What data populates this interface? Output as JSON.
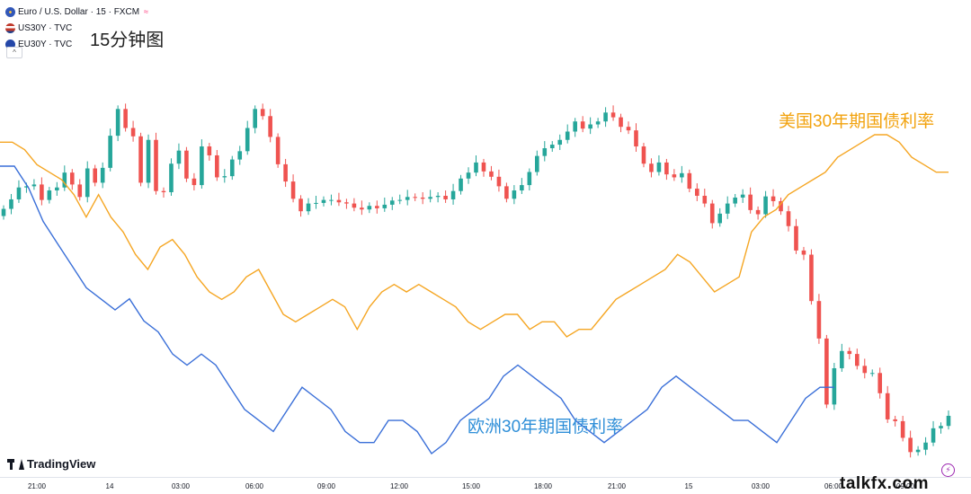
{
  "legend": {
    "main": "Euro / U.S. Dollar · 15 · FXCM",
    "highlight_glyph": "≈",
    "us_series": "US30Y · TVC",
    "eu_series": "EU30Y · TVC",
    "collapse_glyph": "^"
  },
  "annotations": {
    "timeframe": "15分钟图",
    "us_label": "美国30年期国债利率",
    "eu_label": "欧洲30年期国债利率"
  },
  "branding": {
    "platform": "TradingView",
    "watermark": "talkfx.com"
  },
  "colors": {
    "up": "#26a69a",
    "down": "#ef5350",
    "us_line": "#f5a623",
    "eu_line": "#3a6fd8"
  },
  "chart_data": {
    "type": "candlestick",
    "x_ticks": [
      "21:00",
      "14",
      "03:00",
      "06:00",
      "09:00",
      "12:00",
      "15:00",
      "18:00",
      "21:00",
      "15",
      "03:00",
      "06:00",
      "09:00"
    ],
    "series": [
      {
        "name": "Euro / U.S. Dollar · 15 · FXCM",
        "kind": "candles"
      },
      {
        "name": "US30Y · TVC",
        "kind": "line"
      },
      {
        "name": "EU30Y · TVC",
        "kind": "line"
      }
    ],
    "eurusd_close": [
      0.0,
      1.6,
      3.6,
      3.8,
      4.1,
      1.5,
      3.1,
      3.6,
      6.1,
      4.1,
      2.0,
      6.8,
      4.4,
      6.9,
      12.3,
      16.8,
      13.6,
      12.2,
      4.4,
      11.6,
      3.0,
      2.8,
      7.6,
      9.8,
      5.1,
      4.0,
      10.5,
      9.0,
      5.3,
      5.5,
      8.3,
      9.7,
      13.6,
      16.8,
      15.6,
      12.1,
      7.5,
      4.6,
      1.7,
      -0.4,
      0.9,
      1.0,
      1.5,
      1.5,
      1.1,
      0.9,
      0.2,
      -0.1,
      0.5,
      0.1,
      0.7,
      1.4,
      1.5,
      2.0,
      1.9,
      1.7,
      2.0,
      2.2,
      1.6,
      3.0,
      5.1,
      6.1,
      7.8,
      6.3,
      5.4,
      3.8,
      1.7,
      3.1,
      4.0,
      6.2,
      8.9,
      10.2,
      10.8,
      11.6,
      13.0,
      14.7,
      13.5,
      14.2,
      14.7,
      16.2,
      15.4,
      13.8,
      13.2,
      10.5,
      7.6,
      6.2,
      7.8,
      5.8,
      5.3,
      6.0,
      3.4,
      2.2,
      0.9,
      -2.4,
      -0.8,
      0.9,
      1.9,
      2.4,
      -0.2,
      -0.9,
      2.1,
      1.3,
      -0.4,
      -2.9,
      -7.0,
      -7.7,
      -15.5,
      -21.8,
      -32.9,
      -26.8,
      -23.9,
      -24.4,
      -26.4,
      -27.6,
      -27.6,
      -31.0,
      -35.4,
      -35.7,
      -38.5,
      -40.9,
      -40.5,
      -39.3,
      -36.9,
      -36.5,
      -34.8
    ],
    "us30y": [
      5.02,
      5.02,
      5.01,
      4.99,
      4.98,
      4.97,
      4.95,
      4.92,
      4.95,
      4.92,
      4.9,
      4.87,
      4.85,
      4.88,
      4.89,
      4.87,
      4.84,
      4.82,
      4.81,
      4.82,
      4.84,
      4.85,
      4.82,
      4.79,
      4.78,
      4.79,
      4.8,
      4.81,
      4.8,
      4.77,
      4.8,
      4.82,
      4.83,
      4.82,
      4.83,
      4.82,
      4.81,
      4.8,
      4.78,
      4.77,
      4.78,
      4.79,
      4.79,
      4.77,
      4.78,
      4.78,
      4.76,
      4.77,
      4.77,
      4.79,
      4.81,
      4.82,
      4.83,
      4.84,
      4.85,
      4.87,
      4.86,
      4.84,
      4.82,
      4.83,
      4.84,
      4.9,
      4.92,
      4.93,
      4.95,
      4.96,
      4.97,
      4.98,
      5.0,
      5.01,
      5.02,
      5.03,
      5.03,
      5.02,
      5.0,
      4.99,
      4.98,
      4.98
    ],
    "eu30y": [
      3.02,
      3.02,
      3.0,
      2.97,
      2.95,
      2.93,
      2.91,
      2.9,
      2.89,
      2.9,
      2.88,
      2.87,
      2.85,
      2.84,
      2.85,
      2.84,
      2.82,
      2.8,
      2.79,
      2.78,
      2.8,
      2.82,
      2.81,
      2.8,
      2.78,
      2.77,
      2.77,
      2.79,
      2.79,
      2.78,
      2.76,
      2.77,
      2.79,
      2.8,
      2.81,
      2.83,
      2.84,
      2.83,
      2.82,
      2.81,
      2.79,
      2.78,
      2.77,
      2.78,
      2.79,
      2.8,
      2.82,
      2.83,
      2.82,
      2.81,
      2.8,
      2.79,
      2.79,
      2.78,
      2.77,
      2.79,
      2.81,
      2.82,
      2.82
    ]
  }
}
